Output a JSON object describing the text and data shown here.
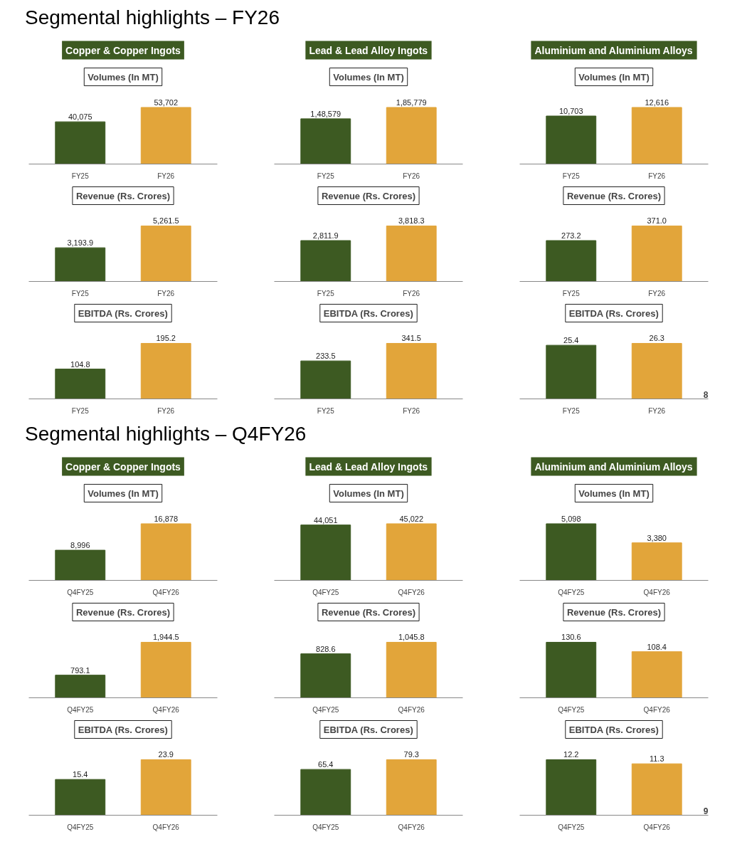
{
  "chart_data": [
    {
      "type": "bar",
      "title": "Volumes (In MT)",
      "subtitle": "Copper & Copper Ingots",
      "annotations": [
        "Segmental highlights – FY26"
      ],
      "categories": [
        "FY25",
        "FY26"
      ],
      "values": [
        40075,
        53702
      ],
      "colors": [
        "#3d5a22",
        "#e2a53a"
      ],
      "value_labels": [
        "40,075",
        "53,702"
      ]
    },
    {
      "type": "bar",
      "title": "Volumes (In MT)",
      "subtitle": "Lead & Lead Alloy Ingots",
      "categories": [
        "FY25",
        "FY26"
      ],
      "values": [
        148579,
        185779
      ],
      "colors": [
        "#3d5a22",
        "#e2a53a"
      ],
      "value_labels": [
        "1,48,579",
        "1,85,779"
      ]
    },
    {
      "type": "bar",
      "title": "Volumes (In MT)",
      "subtitle": "Aluminium and Aluminium Alloys",
      "categories": [
        "FY25",
        "FY26"
      ],
      "values": [
        10703,
        12616
      ],
      "colors": [
        "#3d5a22",
        "#e2a53a"
      ],
      "value_labels": [
        "10,703",
        "12,616"
      ]
    },
    {
      "type": "bar",
      "title": "Revenue (Rs. Crores)",
      "categories": [
        "FY25",
        "FY26"
      ],
      "values": [
        3193.9,
        5261.5
      ],
      "colors": [
        "#3d5a22",
        "#e2a53a"
      ],
      "value_labels": [
        "3,193.9",
        "5,261.5"
      ]
    },
    {
      "type": "bar",
      "title": "Revenue (Rs. Crores)",
      "categories": [
        "FY25",
        "FY26"
      ],
      "values": [
        2811.9,
        3818.3
      ],
      "colors": [
        "#3d5a22",
        "#e2a53a"
      ],
      "value_labels": [
        "2,811.9",
        "3,818.3"
      ]
    },
    {
      "type": "bar",
      "title": "Revenue (Rs. Crores)",
      "categories": [
        "FY25",
        "FY26"
      ],
      "values": [
        273.2,
        371.0
      ],
      "colors": [
        "#3d5a22",
        "#e2a53a"
      ],
      "value_labels": [
        "273.2",
        "371.0"
      ]
    },
    {
      "type": "bar",
      "title": "EBITDA (Rs. Crores)",
      "categories": [
        "FY25",
        "FY26"
      ],
      "values": [
        104.8,
        195.2
      ],
      "colors": [
        "#3d5a22",
        "#e2a53a"
      ],
      "value_labels": [
        "104.8",
        "195.2"
      ]
    },
    {
      "type": "bar",
      "title": "EBITDA (Rs. Crores)",
      "categories": [
        "FY25",
        "FY26"
      ],
      "values": [
        233.5,
        341.5
      ],
      "colors": [
        "#3d5a22",
        "#e2a53a"
      ],
      "value_labels": [
        "233.5",
        "341.5"
      ]
    },
    {
      "type": "bar",
      "title": "EBITDA (Rs. Crores)",
      "annotations": [
        "8"
      ],
      "categories": [
        "FY25",
        "FY26"
      ],
      "values": [
        25.4,
        26.3
      ],
      "colors": [
        "#3d5a22",
        "#e2a53a"
      ],
      "value_labels": [
        "25.4",
        "26.3"
      ]
    },
    {
      "type": "bar",
      "title": "Volumes (In MT)",
      "subtitle": "Copper & Copper Ingots",
      "annotations": [
        "Segmental highlights – Q4FY26"
      ],
      "categories": [
        "Q4FY25",
        "Q4FY26"
      ],
      "values": [
        8996,
        16878
      ],
      "colors": [
        "#3d5a22",
        "#e2a53a"
      ],
      "value_labels": [
        "8,996",
        "16,878"
      ]
    },
    {
      "type": "bar",
      "title": "Volumes (In MT)",
      "subtitle": "Lead & Lead Alloy Ingots",
      "categories": [
        "Q4FY25",
        "Q4FY26"
      ],
      "values": [
        44051,
        45022
      ],
      "colors": [
        "#3d5a22",
        "#e2a53a"
      ],
      "value_labels": [
        "44,051",
        "45,022"
      ]
    },
    {
      "type": "bar",
      "title": "Volumes (In MT)",
      "subtitle": "Aluminium and Aluminium Alloys",
      "categories": [
        "Q4FY25",
        "Q4FY26"
      ],
      "values": [
        5098,
        3380
      ],
      "colors": [
        "#3d5a22",
        "#e2a53a"
      ],
      "value_labels": [
        "5,098",
        "3,380"
      ]
    },
    {
      "type": "bar",
      "title": "Revenue (Rs. Crores)",
      "categories": [
        "Q4FY25",
        "Q4FY26"
      ],
      "values": [
        793.1,
        1944.5
      ],
      "colors": [
        "#3d5a22",
        "#e2a53a"
      ],
      "value_labels": [
        "793.1",
        "1,944.5"
      ]
    },
    {
      "type": "bar",
      "title": "Revenue (Rs. Crores)",
      "categories": [
        "Q4FY25",
        "Q4FY26"
      ],
      "values": [
        828.6,
        1045.8
      ],
      "colors": [
        "#3d5a22",
        "#e2a53a"
      ],
      "value_labels": [
        "828.6",
        "1,045.8"
      ]
    },
    {
      "type": "bar",
      "title": "Revenue (Rs. Crores)",
      "categories": [
        "Q4FY25",
        "Q4FY26"
      ],
      "values": [
        130.6,
        108.4
      ],
      "colors": [
        "#3d5a22",
        "#e2a53a"
      ],
      "value_labels": [
        "130.6",
        "108.4"
      ]
    },
    {
      "type": "bar",
      "title": "EBITDA (Rs. Crores)",
      "categories": [
        "Q4FY25",
        "Q4FY26"
      ],
      "values": [
        15.4,
        23.9
      ],
      "colors": [
        "#3d5a22",
        "#e2a53a"
      ],
      "value_labels": [
        "15.4",
        "23.9"
      ]
    },
    {
      "type": "bar",
      "title": "EBITDA (Rs. Crores)",
      "categories": [
        "Q4FY25",
        "Q4FY26"
      ],
      "values": [
        65.4,
        79.3
      ],
      "colors": [
        "#3d5a22",
        "#e2a53a"
      ],
      "value_labels": [
        "65.4",
        "79.3"
      ]
    },
    {
      "type": "bar",
      "title": "EBITDA (Rs. Crores)",
      "annotations": [
        "9"
      ],
      "categories": [
        "Q4FY25",
        "Q4FY26"
      ],
      "values": [
        12.2,
        11.3
      ],
      "colors": [
        "#3d5a22",
        "#e2a53a"
      ],
      "value_labels": [
        "12.2",
        "11.3"
      ]
    }
  ]
}
